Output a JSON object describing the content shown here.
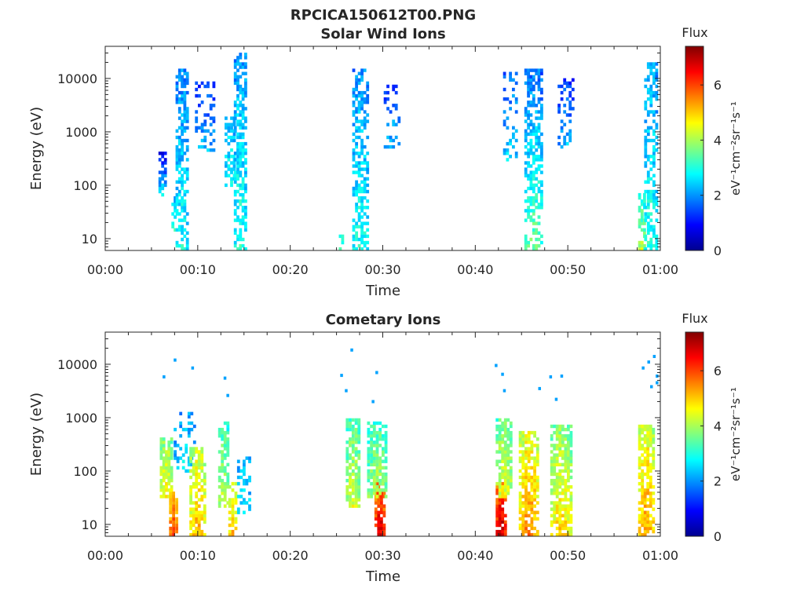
{
  "figure": {
    "title": "RPCICA150612T00.PNG"
  },
  "chart_data": [
    {
      "type": "heatmap",
      "title": "Solar Wind Ions",
      "xlabel": "Time",
      "ylabel": "Energy (eV)",
      "x_ticks": [
        "00:00",
        "00:10",
        "00:20",
        "00:30",
        "00:40",
        "00:50",
        "01:00"
      ],
      "x_range_minutes": [
        0,
        60
      ],
      "y_scale": "log",
      "y_ticks": [
        "10",
        "100",
        "1000",
        "10000"
      ],
      "y_range": [
        6,
        40000
      ],
      "colorbar": {
        "label": "Flux",
        "unit": "eV⁻¹cm⁻²sr⁻¹s⁻¹",
        "range": [
          0,
          7.4
        ],
        "ticks": [
          "0",
          "2",
          "4",
          "6"
        ],
        "colormap": "jet"
      },
      "grid": false,
      "bursts": [
        {
          "t": 6.2,
          "dt": 0.9,
          "emin": 60,
          "emax": 450,
          "peak": 2.8,
          "rise": 2,
          "dens": 0.6
        },
        {
          "t": 7.4,
          "dt": 0.5,
          "emin": 12,
          "emax": 60,
          "peak": 3.6,
          "rise": 1.5,
          "dens": 0.5
        },
        {
          "t": 8.3,
          "dt": 1.4,
          "emin": 6,
          "emax": 15000,
          "peak": 2.9,
          "rise": 1,
          "dens": 0.6
        },
        {
          "t": 10.8,
          "dt": 2.2,
          "emin": 400,
          "emax": 9000,
          "peak": 2.3,
          "rise": 1,
          "dens": 0.3
        },
        {
          "t": 13.5,
          "dt": 1.2,
          "emin": 100,
          "emax": 2000,
          "peak": 2.8,
          "rise": 0.5,
          "dens": 0.5
        },
        {
          "t": 14.6,
          "dt": 1.4,
          "emin": 6,
          "emax": 30000,
          "peak": 3.1,
          "rise": 1,
          "dens": 0.55
        },
        {
          "t": 25.5,
          "dt": 0.5,
          "emin": 6,
          "emax": 15,
          "peak": 3.8,
          "rise": 1,
          "dens": 0.5
        },
        {
          "t": 27.6,
          "dt": 1.8,
          "emin": 6,
          "emax": 15000,
          "peak": 3.0,
          "rise": 1,
          "dens": 0.6
        },
        {
          "t": 31.0,
          "dt": 1.8,
          "emin": 500,
          "emax": 10000,
          "peak": 2.3,
          "rise": 1,
          "dens": 0.25
        },
        {
          "t": 43.8,
          "dt": 1.6,
          "emin": 300,
          "emax": 15000,
          "peak": 2.6,
          "rise": 1,
          "dens": 0.3
        },
        {
          "t": 46.3,
          "dt": 2.0,
          "emin": 6,
          "emax": 15000,
          "peak": 3.6,
          "rise": 1.8,
          "dens": 0.6
        },
        {
          "t": 49.8,
          "dt": 1.8,
          "emin": 500,
          "emax": 10000,
          "peak": 2.3,
          "rise": 1,
          "dens": 0.35
        },
        {
          "t": 58.0,
          "dt": 0.8,
          "emin": 6,
          "emax": 100,
          "peak": 4.2,
          "rise": 1.5,
          "dens": 0.6
        },
        {
          "t": 59.0,
          "dt": 1.5,
          "emin": 6,
          "emax": 20000,
          "peak": 3.1,
          "rise": 1,
          "dens": 0.6
        }
      ]
    },
    {
      "type": "heatmap",
      "title": "Cometary Ions",
      "xlabel": "Time",
      "ylabel": "Energy (eV)",
      "x_ticks": [
        "00:00",
        "00:10",
        "00:20",
        "00:30",
        "00:40",
        "00:50",
        "01:00"
      ],
      "x_range_minutes": [
        0,
        60
      ],
      "y_scale": "log",
      "y_ticks": [
        "10",
        "100",
        "1000",
        "10000"
      ],
      "y_range": [
        6,
        40000
      ],
      "colorbar": {
        "label": "Flux",
        "unit": "eV⁻¹cm⁻²sr⁻¹s⁻¹",
        "range": [
          0,
          7.4
        ],
        "ticks": [
          "0",
          "2",
          "4",
          "6"
        ],
        "colormap": "jet"
      },
      "grid": false,
      "bursts": [
        {
          "t": 6.6,
          "dt": 1.4,
          "emin": 30,
          "emax": 400,
          "peak": 4.8,
          "rise": 1,
          "dens": 0.85
        },
        {
          "t": 7.4,
          "dt": 1.0,
          "emin": 6,
          "emax": 45,
          "peak": 6.2,
          "rise": 1,
          "dens": 0.85
        },
        {
          "t": 8.6,
          "dt": 2.4,
          "emin": 100,
          "emax": 1200,
          "peak": 2.6,
          "rise": 0.5,
          "dens": 0.35
        },
        {
          "t": 10.0,
          "dt": 1.8,
          "emin": 6,
          "emax": 300,
          "peak": 5.2,
          "rise": 1,
          "dens": 0.75
        },
        {
          "t": 12.8,
          "dt": 1.2,
          "emin": 20,
          "emax": 900,
          "peak": 4.2,
          "rise": 1,
          "dens": 0.7
        },
        {
          "t": 13.8,
          "dt": 1.0,
          "emin": 6,
          "emax": 60,
          "peak": 5.2,
          "rise": 1,
          "dens": 0.7
        },
        {
          "t": 15.0,
          "dt": 1.5,
          "emin": 15,
          "emax": 200,
          "peak": 2.7,
          "rise": 0.5,
          "dens": 0.4
        },
        {
          "t": 26.8,
          "dt": 1.6,
          "emin": 20,
          "emax": 1000,
          "peak": 4.4,
          "rise": 1,
          "dens": 0.8
        },
        {
          "t": 29.7,
          "dt": 1.2,
          "emin": 6,
          "emax": 60,
          "peak": 6.8,
          "rise": 1,
          "dens": 0.9
        },
        {
          "t": 29.4,
          "dt": 2.2,
          "emin": 30,
          "emax": 800,
          "peak": 4.2,
          "rise": 1,
          "dens": 0.7
        },
        {
          "t": 42.8,
          "dt": 1.2,
          "emin": 6,
          "emax": 60,
          "peak": 7.0,
          "rise": 1,
          "dens": 0.95
        },
        {
          "t": 43.1,
          "dt": 1.8,
          "emin": 30,
          "emax": 1000,
          "peak": 4.6,
          "rise": 1,
          "dens": 0.8
        },
        {
          "t": 45.8,
          "dt": 2.2,
          "emin": 6,
          "emax": 600,
          "peak": 5.6,
          "rise": 1.2,
          "dens": 0.85
        },
        {
          "t": 49.3,
          "dt": 2.4,
          "emin": 6,
          "emax": 700,
          "peak": 5.0,
          "rise": 1.2,
          "dens": 0.8
        },
        {
          "t": 58.5,
          "dt": 1.8,
          "emin": 6,
          "emax": 700,
          "peak": 5.4,
          "rise": 1,
          "dens": 0.8
        }
      ],
      "sparse_points": [
        {
          "t": 6.2,
          "e": 5800
        },
        {
          "t": 7.4,
          "e": 12000
        },
        {
          "t": 9.3,
          "e": 8500
        },
        {
          "t": 12.8,
          "e": 5500
        },
        {
          "t": 13.1,
          "e": 2600
        },
        {
          "t": 25.4,
          "e": 6200
        },
        {
          "t": 26.5,
          "e": 18500
        },
        {
          "t": 25.9,
          "e": 3200
        },
        {
          "t": 29.2,
          "e": 7000
        },
        {
          "t": 28.8,
          "e": 2000
        },
        {
          "t": 42.1,
          "e": 9500
        },
        {
          "t": 42.8,
          "e": 6500
        },
        {
          "t": 43.0,
          "e": 3200
        },
        {
          "t": 46.8,
          "e": 3500
        },
        {
          "t": 48.0,
          "e": 5800
        },
        {
          "t": 48.6,
          "e": 2200
        },
        {
          "t": 49.2,
          "e": 6000
        },
        {
          "t": 58.0,
          "e": 8500
        },
        {
          "t": 58.6,
          "e": 11000
        },
        {
          "t": 59.2,
          "e": 14000
        },
        {
          "t": 59.5,
          "e": 6000
        },
        {
          "t": 58.9,
          "e": 3800
        },
        {
          "t": 59.5,
          "e": 4500
        }
      ]
    }
  ]
}
